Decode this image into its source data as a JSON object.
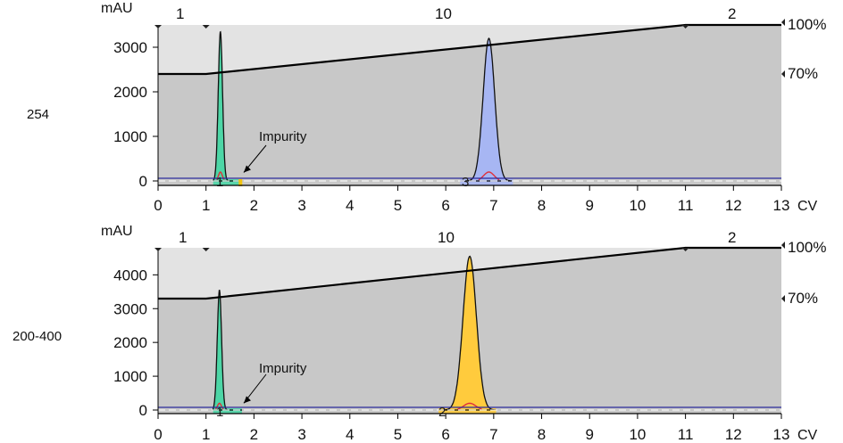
{
  "colors": {
    "plot_bg": "#c8c8c8",
    "upper_band": "#e3e3e3",
    "gradient_line": "#000000",
    "baseline": "#2b2b9a",
    "peak_green": "#4dd6a6",
    "peak_blue": "#a7b6f3",
    "peak_yellow": "#ffcb3d",
    "fraction_red": "#e0303a",
    "tag_yellow": "#f1c40f"
  },
  "chart_data": [
    {
      "type": "line",
      "side_label": "254",
      "ylabel": "mAU",
      "xlabel": "CV",
      "xlim": [
        0,
        13
      ],
      "ylim": [
        -200,
        3500
      ],
      "x_ticks": [
        0,
        1,
        2,
        3,
        4,
        5,
        6,
        7,
        8,
        9,
        10,
        11,
        12,
        13
      ],
      "y_ticks": [
        0,
        1000,
        2000,
        3000
      ],
      "segment_labels": [
        {
          "text": "1",
          "x": 0.5
        },
        {
          "text": "10",
          "x": 6.0
        },
        {
          "text": "2",
          "x": 12.0
        }
      ],
      "right_labels": [
        "100%",
        "70%"
      ],
      "gradient": [
        [
          0,
          70
        ],
        [
          1,
          70
        ],
        [
          11,
          100
        ],
        [
          13,
          100
        ]
      ],
      "peaks": [
        {
          "center": 1.3,
          "height": 3350,
          "width": 0.045,
          "color_key": "peak_green",
          "start": 1.15,
          "end": 1.7
        },
        {
          "center": 6.9,
          "height": 3200,
          "width": 0.12,
          "color_key": "peak_blue",
          "start": 6.3,
          "end": 7.4
        }
      ],
      "fractions": [
        {
          "label": "1",
          "start": 1.15,
          "end": 1.7,
          "color_key": "peak_green"
        },
        {
          "label": "3",
          "start": 6.3,
          "end": 7.4,
          "color_key": "peak_blue"
        }
      ],
      "annotation": {
        "text": "Impurity",
        "x": 1.75,
        "y": 150
      }
    },
    {
      "type": "line",
      "side_label": "200-400",
      "ylabel": "mAU",
      "xlabel": "CV",
      "xlim": [
        0,
        13
      ],
      "ylim": [
        -250,
        4800
      ],
      "x_ticks": [
        0,
        1,
        2,
        3,
        4,
        5,
        6,
        7,
        8,
        9,
        10,
        11,
        12,
        13
      ],
      "y_ticks": [
        0,
        1000,
        2000,
        3000,
        4000
      ],
      "segment_labels": [
        {
          "text": "1",
          "x": 0.5
        },
        {
          "text": "10",
          "x": 6.0
        },
        {
          "text": "2",
          "x": 12.0
        }
      ],
      "right_labels": [
        "100%",
        "70%"
      ],
      "gradient": [
        [
          0,
          70
        ],
        [
          1,
          70
        ],
        [
          11,
          100
        ],
        [
          13,
          100
        ]
      ],
      "peaks": [
        {
          "center": 1.28,
          "height": 3550,
          "width": 0.045,
          "color_key": "peak_green",
          "start": 1.15,
          "end": 1.75
        },
        {
          "center": 6.5,
          "height": 4550,
          "width": 0.14,
          "color_key": "peak_yellow",
          "start": 5.85,
          "end": 7.05
        }
      ],
      "fractions": [
        {
          "label": "1",
          "start": 1.15,
          "end": 1.75,
          "color_key": "peak_green"
        },
        {
          "label": "2",
          "start": 5.85,
          "end": 7.05,
          "color_key": "peak_yellow"
        }
      ],
      "annotation": {
        "text": "Impurity",
        "x": 1.75,
        "y": 150
      }
    }
  ]
}
